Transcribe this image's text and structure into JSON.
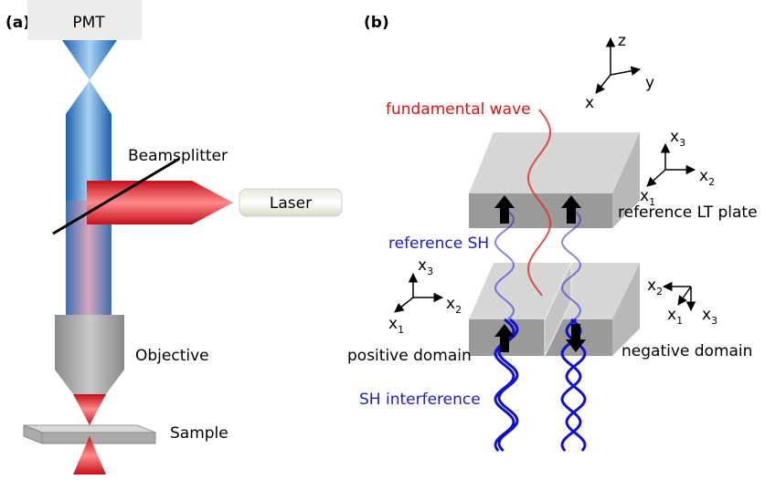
{
  "panel_a": {
    "label": "(a)",
    "pmt": "PMT",
    "beamsplitter": "Beamsplitter",
    "laser": "Laser",
    "objective": "Objective",
    "sample": "Sample"
  },
  "panel_b": {
    "label": "(b)",
    "fundamental_wave": "fundamental wave",
    "reference_sh": "reference SH",
    "sh_interference": "SH interference",
    "positive_domain": "positive domain",
    "negative_domain": "negative domain",
    "reference_lt_plate": "reference LT plate",
    "lab_axes": [
      "z",
      "y",
      "x"
    ],
    "plate_axes": [
      [
        "x",
        "3"
      ],
      [
        "x",
        "2"
      ],
      [
        "x",
        "1"
      ]
    ],
    "positive_axes": [
      [
        "x",
        "3"
      ],
      [
        "x",
        "2"
      ],
      [
        "x",
        "1"
      ]
    ],
    "negative_axes": [
      [
        "x",
        "2"
      ],
      [
        "x",
        "1"
      ],
      [
        "x",
        "3"
      ]
    ]
  }
}
